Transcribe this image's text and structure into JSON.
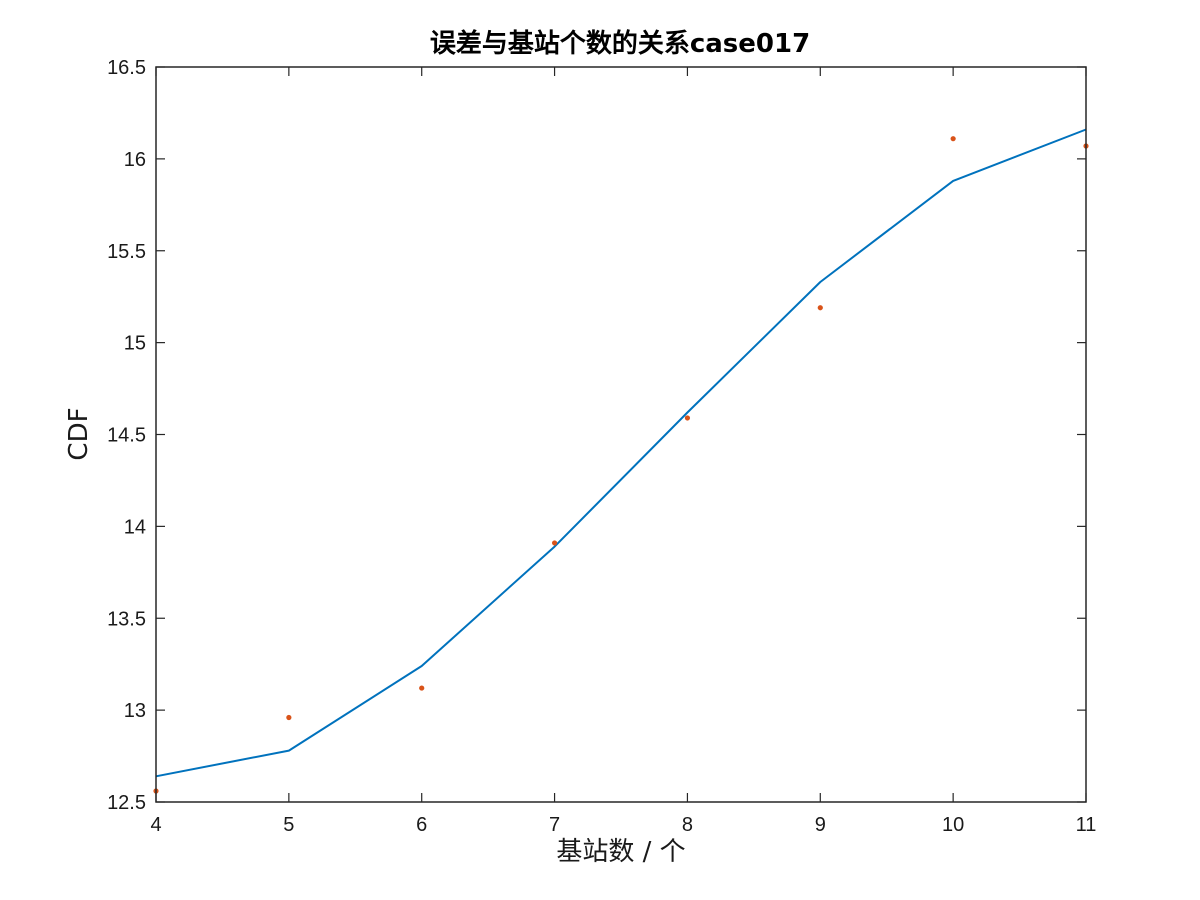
{
  "chart_data": {
    "type": "line",
    "title": "误差与基站个数的关系case017",
    "xlabel": "基站数 / 个",
    "ylabel": "CDF",
    "xlim": [
      4,
      11
    ],
    "ylim": [
      12.5,
      16.5
    ],
    "x_ticks": [
      "4",
      "5",
      "6",
      "7",
      "8",
      "9",
      "10",
      "11"
    ],
    "y_ticks": [
      "12.5",
      "13",
      "13.5",
      "14",
      "14.5",
      "15",
      "15.5",
      "16",
      "16.5"
    ],
    "grid": false,
    "legend": "none",
    "series": [
      {
        "style": "line",
        "color": "#0072bd",
        "x": [
          4,
          5,
          6,
          7,
          8,
          9,
          10,
          11
        ],
        "y": [
          12.64,
          12.78,
          13.24,
          13.89,
          14.62,
          15.33,
          15.88,
          16.16
        ]
      },
      {
        "style": "points",
        "color": "#d95319",
        "x": [
          4,
          5,
          6,
          7,
          8,
          9,
          10,
          11
        ],
        "y": [
          12.56,
          12.96,
          13.12,
          13.91,
          14.59,
          15.19,
          16.11,
          16.07
        ]
      }
    ]
  }
}
